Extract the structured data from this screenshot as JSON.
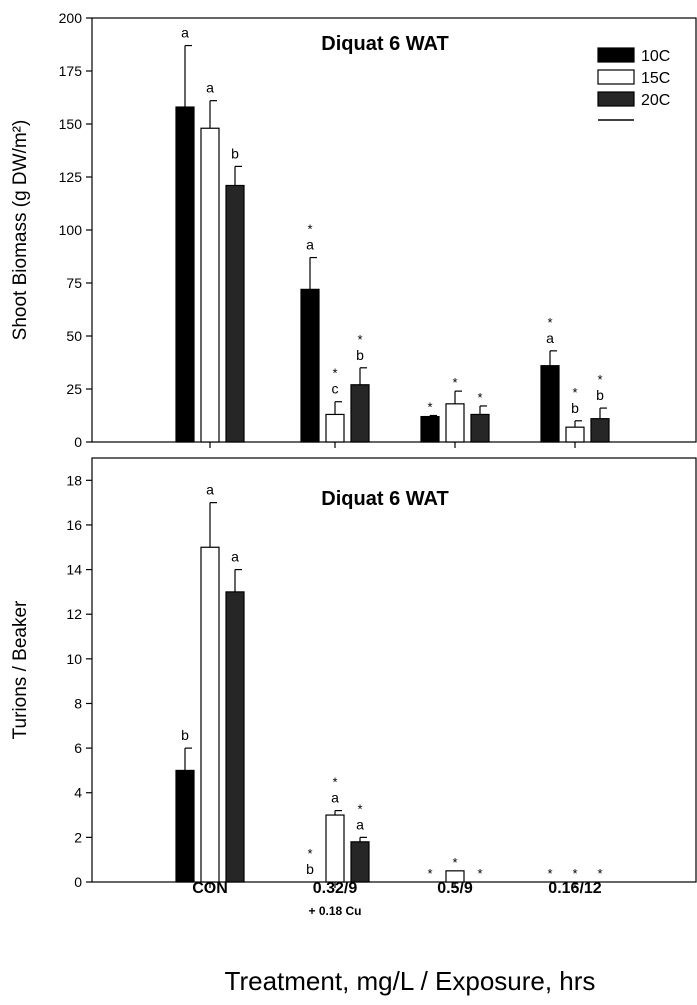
{
  "chart_data": [
    {
      "type": "bar",
      "title": "Diquat 6 WAT",
      "ylabel": "Shoot Biomass (g DW/m²)",
      "ylim": [
        0,
        200
      ],
      "yticks": [
        0,
        25,
        50,
        75,
        100,
        125,
        150,
        175,
        200
      ],
      "categories": [
        "CON",
        "0.32/9",
        "0.5/9",
        "0.16/12"
      ],
      "legend": {
        "placement": "top-right",
        "entries": [
          "10C",
          "15C",
          "20C"
        ]
      },
      "series": [
        {
          "name": "10C",
          "fill": "#000000",
          "values": [
            158,
            72,
            12,
            36
          ],
          "errors": [
            29,
            15,
            0.5,
            7
          ],
          "letters": [
            "",
            "a",
            "",
            "a"
          ],
          "stars": [
            false,
            true,
            true,
            true
          ]
        },
        {
          "name": "15C",
          "fill": "#ffffff",
          "values": [
            148,
            13,
            18,
            7
          ],
          "errors": [
            13,
            6,
            6,
            3
          ],
          "letters": [
            "a",
            "c",
            "",
            "b"
          ],
          "stars": [
            false,
            true,
            true,
            true
          ]
        },
        {
          "name": "20C",
          "fill": "#262626",
          "values": [
            121,
            27,
            13,
            11
          ],
          "errors": [
            9,
            8,
            4,
            5
          ],
          "letters": [
            "b",
            "b",
            "",
            "b"
          ],
          "stars": [
            false,
            true,
            true,
            true
          ]
        }
      ],
      "top_letters": {
        "10C": [
          "a",
          "",
          "",
          ""
        ]
      }
    },
    {
      "type": "bar",
      "title": "Diquat 6 WAT",
      "ylabel": "Turions / Beaker",
      "ylim": [
        0,
        19
      ],
      "yticks": [
        0,
        2,
        4,
        6,
        8,
        10,
        12,
        14,
        16,
        18
      ],
      "categories": [
        "CON",
        "0.32/9",
        "0.5/9",
        "0.16/12"
      ],
      "series": [
        {
          "name": "10C",
          "fill": "#000000",
          "values": [
            5,
            0,
            0,
            0
          ],
          "errors": [
            1,
            0,
            0,
            0
          ],
          "letters": [
            "b",
            "b",
            "",
            ""
          ],
          "stars": [
            false,
            true,
            true,
            true
          ]
        },
        {
          "name": "15C",
          "fill": "#ffffff",
          "values": [
            15,
            3,
            0.5,
            0
          ],
          "errors": [
            2,
            0.2,
            0,
            0
          ],
          "letters": [
            "a",
            "a",
            "",
            ""
          ],
          "stars": [
            false,
            true,
            true,
            true
          ]
        },
        {
          "name": "20C",
          "fill": "#262626",
          "values": [
            13,
            1.8,
            0,
            0
          ],
          "errors": [
            1,
            0.2,
            0,
            0
          ],
          "letters": [
            "a",
            "a",
            "",
            ""
          ],
          "stars": [
            false,
            true,
            true,
            true
          ]
        }
      ]
    }
  ],
  "x_axis": {
    "category_sublabel": "+ 0.18 Cu",
    "xlabel": "Treatment, mg/L / Exposure, hrs"
  }
}
